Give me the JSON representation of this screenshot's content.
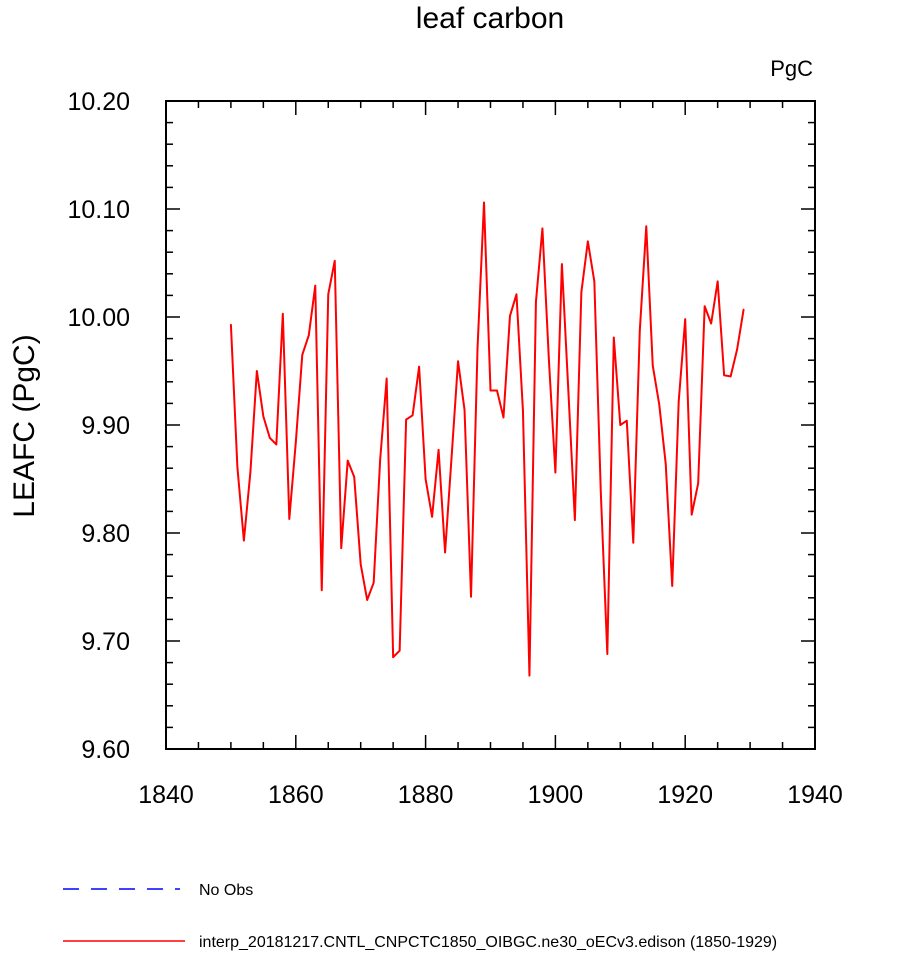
{
  "chart_data": {
    "type": "line",
    "title": "leaf carbon",
    "units_label": "PgC",
    "ylabel": "LEAFC  (PgC)",
    "xlabel": "",
    "xlim": [
      1840,
      1940
    ],
    "ylim": [
      9.6,
      10.2
    ],
    "x_ticks": [
      1840,
      1860,
      1880,
      1900,
      1920,
      1940
    ],
    "y_ticks": [
      "9.60",
      "9.70",
      "9.80",
      "9.90",
      "10.00",
      "10.10",
      "10.20"
    ],
    "grid": false,
    "legend_position": "bottom-left",
    "series": [
      {
        "name": "No Obs",
        "color": "#0000ff",
        "dash": "dashed",
        "x": [],
        "values": []
      },
      {
        "name": "interp_20181217.CNTL_CNPCTC1850_OIBGC.ne30_oECv3.edison (1850-1929)",
        "color": "#ff0000",
        "dash": "solid",
        "x": [
          1850,
          1851,
          1852,
          1853,
          1854,
          1855,
          1856,
          1857,
          1858,
          1859,
          1860,
          1861,
          1862,
          1863,
          1864,
          1865,
          1866,
          1867,
          1868,
          1869,
          1870,
          1871,
          1872,
          1873,
          1874,
          1875,
          1876,
          1877,
          1878,
          1879,
          1880,
          1881,
          1882,
          1883,
          1884,
          1885,
          1886,
          1887,
          1888,
          1889,
          1890,
          1891,
          1892,
          1893,
          1894,
          1895,
          1896,
          1897,
          1898,
          1899,
          1900,
          1901,
          1902,
          1903,
          1904,
          1905,
          1906,
          1907,
          1908,
          1909,
          1910,
          1911,
          1912,
          1913,
          1914,
          1915,
          1916,
          1917,
          1918,
          1919,
          1920,
          1921,
          1922,
          1923,
          1924,
          1925,
          1926,
          1927,
          1928,
          1929
        ],
        "values": [
          9.993,
          9.861,
          9.793,
          9.856,
          9.95,
          9.908,
          9.888,
          9.882,
          10.003,
          9.813,
          9.884,
          9.965,
          9.983,
          10.029,
          9.747,
          10.021,
          10.052,
          9.786,
          9.867,
          9.852,
          9.771,
          9.738,
          9.754,
          9.868,
          9.943,
          9.685,
          9.691,
          9.905,
          9.909,
          9.954,
          9.85,
          9.815,
          9.877,
          9.782,
          9.87,
          9.959,
          9.914,
          9.741,
          9.971,
          10.106,
          9.932,
          9.932,
          9.907,
          10.001,
          10.021,
          9.913,
          9.668,
          10.014,
          10.082,
          9.96,
          9.856,
          10.049,
          9.931,
          9.812,
          10.023,
          10.07,
          10.033,
          9.837,
          9.688,
          9.981,
          9.9,
          9.904,
          9.791,
          9.987,
          10.084,
          9.955,
          9.919,
          9.864,
          9.751,
          9.922,
          9.998,
          9.817,
          9.846,
          10.01,
          9.994,
          10.033,
          9.946,
          9.945,
          9.97,
          10.007
        ]
      }
    ]
  }
}
